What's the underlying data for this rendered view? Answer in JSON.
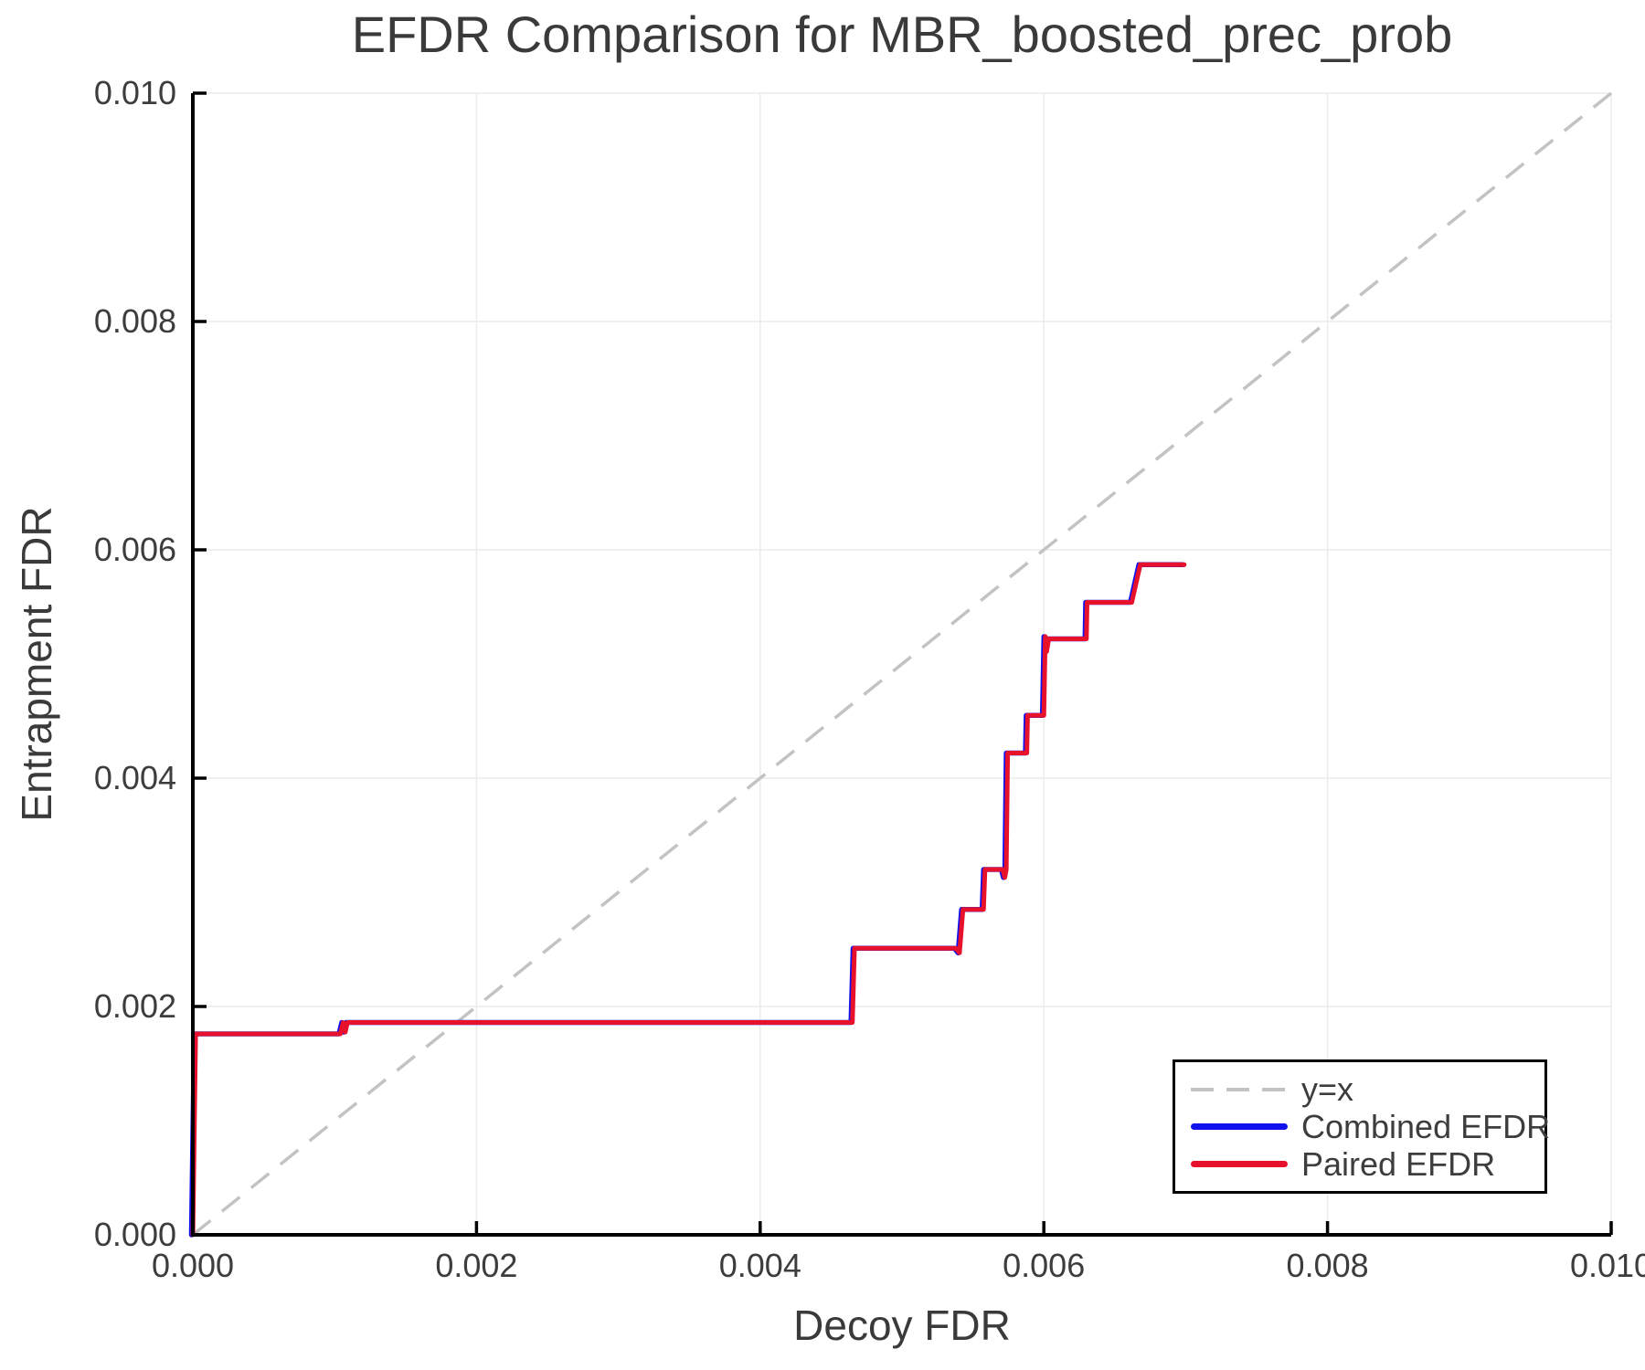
{
  "figure": {
    "background": "#ffffff"
  },
  "chart_data": {
    "type": "line",
    "title": "EFDR Comparison for MBR_boosted_prec_prob",
    "xlabel": "Decoy FDR",
    "ylabel": "Entrapment FDR",
    "xlim": [
      0.0,
      0.01
    ],
    "ylim": [
      0.0,
      0.01
    ],
    "xtick_values": [
      0.0,
      0.002,
      0.004,
      0.006,
      0.008,
      0.01
    ],
    "xtick_labels": [
      "0.000",
      "0.002",
      "0.004",
      "0.006",
      "0.008",
      "0.010"
    ],
    "ytick_values": [
      0.0,
      0.002,
      0.004,
      0.006,
      0.008,
      0.01
    ],
    "ytick_labels": [
      "0.000",
      "0.002",
      "0.004",
      "0.006",
      "0.008",
      "0.010"
    ],
    "grid": true,
    "legend_position": "bottom-right",
    "colors": {
      "grid": "#ececec",
      "spine": "#000000",
      "tick_text": "#3d3d3d",
      "identity": "#c3c3c3",
      "combined": "#1111ee",
      "paired": "#e8112b"
    },
    "series": [
      {
        "name": "y=x",
        "style": "dashed",
        "color": "#c3c3c3",
        "points": [
          [
            0.0,
            0.0
          ],
          [
            0.01,
            0.01
          ]
        ]
      },
      {
        "name": "Combined EFDR",
        "style": "solid",
        "color": "#1111ee",
        "points": [
          [
            0.0,
            0.0
          ],
          [
            2e-05,
            0.00176
          ],
          [
            0.00104,
            0.00176
          ],
          [
            0.00106,
            0.00186
          ],
          [
            0.001075,
            0.001775
          ],
          [
            0.00109,
            0.00186
          ],
          [
            0.00465,
            0.00186
          ],
          [
            0.004665,
            0.00251
          ],
          [
            0.00538,
            0.00251
          ],
          [
            0.005405,
            0.00247
          ],
          [
            0.00543,
            0.00285
          ],
          [
            0.005575,
            0.00285
          ],
          [
            0.005585,
            0.0032
          ],
          [
            0.00571,
            0.0032
          ],
          [
            0.005725,
            0.00313
          ],
          [
            0.005735,
            0.0032
          ],
          [
            0.005745,
            0.00422
          ],
          [
            0.00588,
            0.00422
          ],
          [
            0.005885,
            0.00455
          ],
          [
            0.006,
            0.00455
          ],
          [
            0.00601,
            0.00524
          ],
          [
            0.00602,
            0.00511
          ],
          [
            0.006035,
            0.00522
          ],
          [
            0.0063,
            0.00522
          ],
          [
            0.006305,
            0.00554
          ],
          [
            0.00662,
            0.00554
          ],
          [
            0.00668,
            0.00587
          ],
          [
            0.00699,
            0.00587
          ]
        ]
      },
      {
        "name": "Paired EFDR",
        "style": "solid",
        "color": "#e8112b",
        "points": [
          [
            0.0,
            0.0
          ],
          [
            2e-05,
            0.00176
          ],
          [
            0.00104,
            0.00176
          ],
          [
            0.00106,
            0.00186
          ],
          [
            0.001075,
            0.001775
          ],
          [
            0.00109,
            0.00186
          ],
          [
            0.00465,
            0.00186
          ],
          [
            0.004665,
            0.00251
          ],
          [
            0.00538,
            0.00251
          ],
          [
            0.005405,
            0.00247
          ],
          [
            0.00543,
            0.00285
          ],
          [
            0.005575,
            0.00285
          ],
          [
            0.005585,
            0.0032
          ],
          [
            0.00571,
            0.0032
          ],
          [
            0.005725,
            0.00313
          ],
          [
            0.005735,
            0.0032
          ],
          [
            0.005745,
            0.00422
          ],
          [
            0.00588,
            0.00422
          ],
          [
            0.005885,
            0.00455
          ],
          [
            0.006,
            0.00455
          ],
          [
            0.00601,
            0.00524
          ],
          [
            0.00602,
            0.00511
          ],
          [
            0.006035,
            0.00522
          ],
          [
            0.0063,
            0.00522
          ],
          [
            0.006305,
            0.00554
          ],
          [
            0.00662,
            0.00554
          ],
          [
            0.00668,
            0.00587
          ],
          [
            0.00699,
            0.00587
          ]
        ]
      }
    ]
  }
}
